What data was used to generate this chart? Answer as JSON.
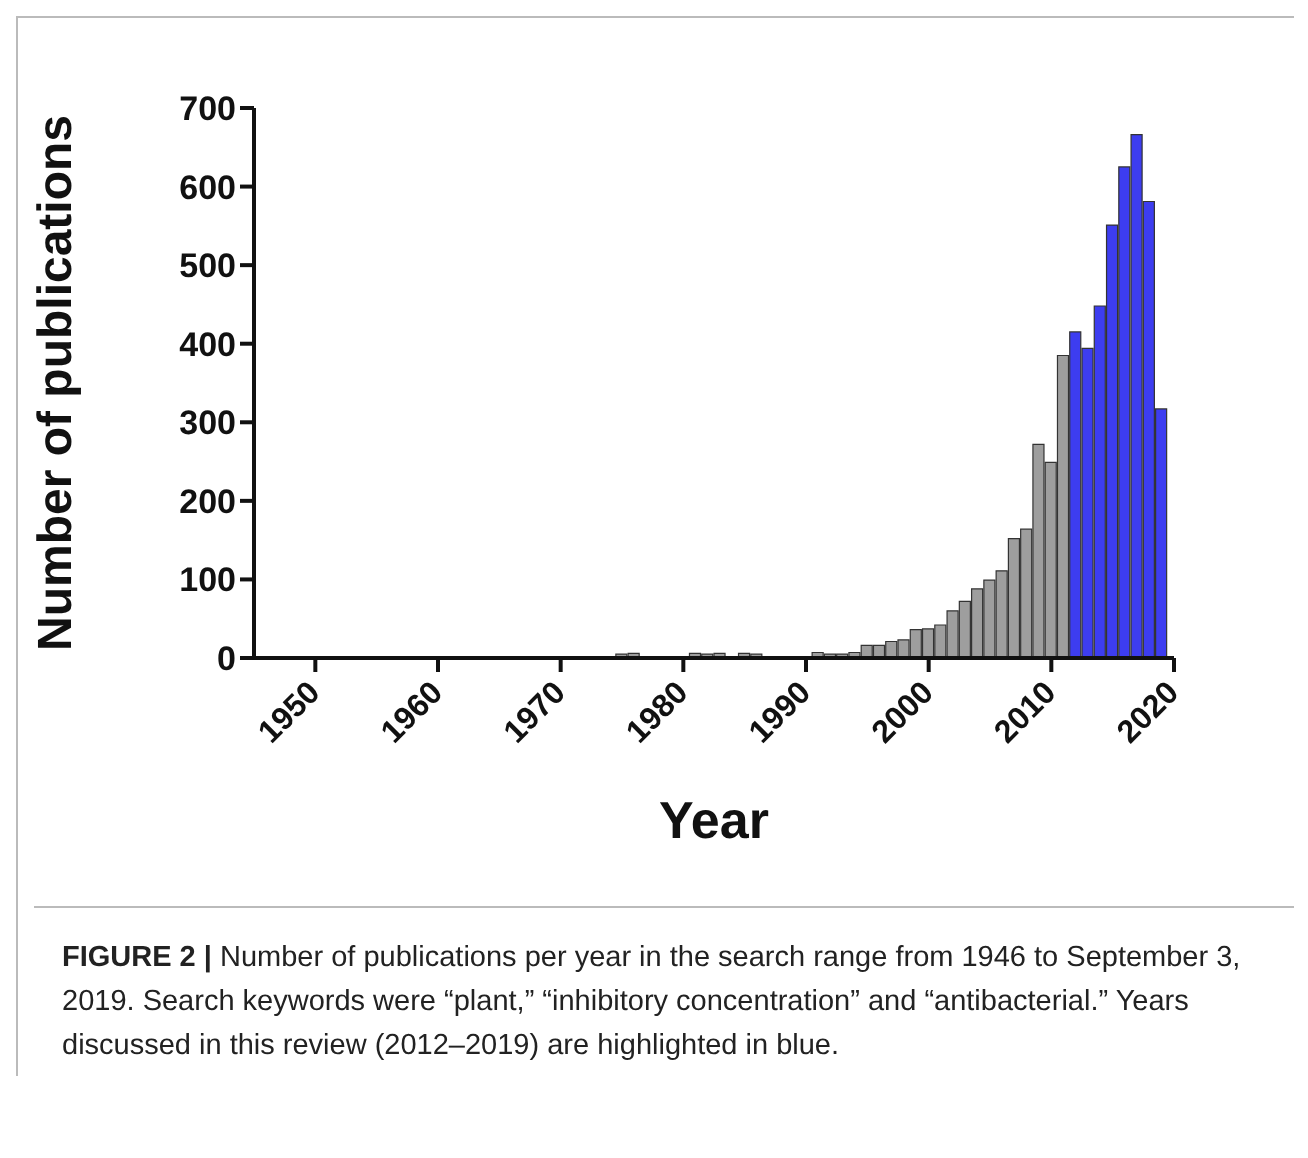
{
  "chart_data": {
    "type": "bar",
    "xlabel": "Year",
    "ylabel": "Number of publications",
    "x": [
      1946,
      1947,
      1948,
      1949,
      1950,
      1951,
      1952,
      1953,
      1954,
      1955,
      1956,
      1957,
      1958,
      1959,
      1960,
      1961,
      1962,
      1963,
      1964,
      1965,
      1966,
      1967,
      1968,
      1969,
      1970,
      1971,
      1972,
      1973,
      1974,
      1975,
      1976,
      1977,
      1978,
      1979,
      1980,
      1981,
      1982,
      1983,
      1984,
      1985,
      1986,
      1987,
      1988,
      1989,
      1990,
      1991,
      1992,
      1993,
      1994,
      1995,
      1996,
      1997,
      1998,
      1999,
      2000,
      2001,
      2002,
      2003,
      2004,
      2005,
      2006,
      2007,
      2008,
      2009,
      2010,
      2011,
      2012,
      2013,
      2014,
      2015,
      2016,
      2017,
      2018,
      2019
    ],
    "values": [
      0,
      0,
      0,
      0,
      0,
      0,
      0,
      0,
      0,
      0,
      0,
      0,
      0,
      0,
      0,
      0,
      0,
      0,
      0,
      0,
      0,
      0,
      0,
      0,
      0,
      0,
      0,
      0,
      null,
      5,
      6,
      null,
      null,
      0,
      null,
      6,
      5,
      6,
      null,
      6,
      5,
      null,
      1,
      1,
      null,
      7,
      5,
      5,
      7,
      16,
      16,
      21,
      23,
      36,
      37,
      42,
      60,
      72,
      88,
      99,
      111,
      152,
      164,
      272,
      249,
      385,
      415,
      394,
      448,
      551,
      625,
      666,
      581,
      317
    ],
    "colors": [
      "#9e9e9e",
      "#9e9e9e",
      "#9e9e9e",
      "#9e9e9e",
      "#9e9e9e",
      "#9e9e9e",
      "#9e9e9e",
      "#9e9e9e",
      "#9e9e9e",
      "#9e9e9e",
      "#9e9e9e",
      "#9e9e9e",
      "#9e9e9e",
      "#9e9e9e",
      "#9e9e9e",
      "#9e9e9e",
      "#9e9e9e",
      "#9e9e9e",
      "#9e9e9e",
      "#9e9e9e",
      "#9e9e9e",
      "#9e9e9e",
      "#9e9e9e",
      "#9e9e9e",
      "#9e9e9e",
      "#9e9e9e",
      "#9e9e9e",
      "#9e9e9e",
      "#9e9e9e",
      "#9e9e9e",
      "#9e9e9e",
      "#9e9e9e",
      "#9e9e9e",
      "#9e9e9e",
      "#9e9e9e",
      "#9e9e9e",
      "#9e9e9e",
      "#9e9e9e",
      "#9e9e9e",
      "#9e9e9e",
      "#9e9e9e",
      "#9e9e9e",
      "#9e9e9e",
      "#9e9e9e",
      "#9e9e9e",
      "#9e9e9e",
      "#9e9e9e",
      "#9e9e9e",
      "#9e9e9e",
      "#9e9e9e",
      "#9e9e9e",
      "#9e9e9e",
      "#9e9e9e",
      "#9e9e9e",
      "#9e9e9e",
      "#9e9e9e",
      "#9e9e9e",
      "#9e9e9e",
      "#9e9e9e",
      "#9e9e9e",
      "#9e9e9e",
      "#9e9e9e",
      "#9e9e9e",
      "#9e9e9e",
      "#9e9e9e",
      "#9e9e9e",
      "#3d3df0",
      "#3d3df0",
      "#3d3df0",
      "#3d3df0",
      "#3d3df0",
      "#3d3df0",
      "#3d3df0",
      "#3d3df0"
    ],
    "xlim": [
      1945,
      2020
    ],
    "xticks": [
      1950,
      1960,
      1970,
      1980,
      1990,
      2000,
      2010,
      2020
    ],
    "ylim": [
      0,
      700
    ],
    "yticks": [
      0,
      100,
      200,
      300,
      400,
      500,
      600,
      700
    ],
    "annotations": [
      "FIGURE 2 |",
      "Number of publications per year in the search range from 1946 to September 3, 2019. Search keywords were “plant,” “inhibitory concentration” and “antibacterial.” Years discussed in this review (2012–2019) are highlighted in blue."
    ]
  }
}
